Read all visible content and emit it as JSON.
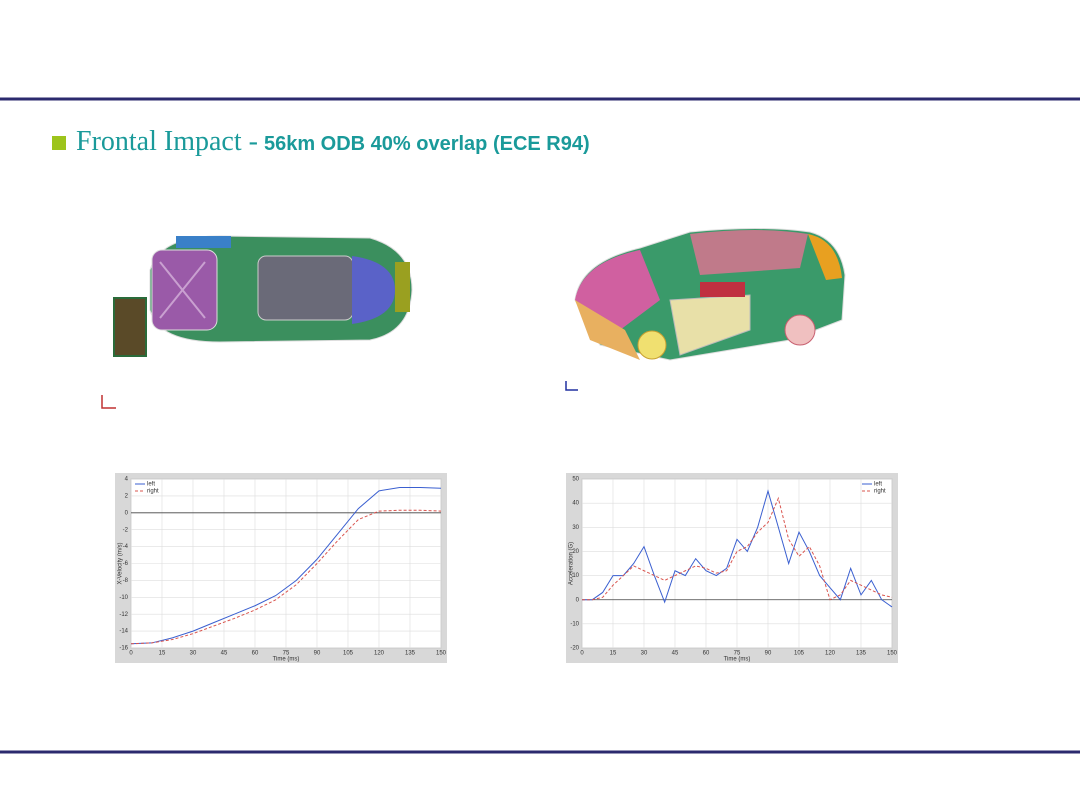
{
  "header": {
    "title_prefix": "Frontal Impact -",
    "title_detail": "56km ODB 40% overlap  (ECE R94)"
  },
  "chart_data": [
    {
      "type": "line",
      "xlabel": "Time (ms)",
      "ylabel": "X-Velocity (m/s)",
      "xlim": [
        0,
        150
      ],
      "xticks": [
        0,
        15,
        30,
        45,
        60,
        75,
        90,
        105,
        120,
        135,
        150
      ],
      "ylim": [
        -16,
        4
      ],
      "yticks": [
        -16,
        -14,
        -12,
        -10,
        -8,
        -6,
        -4,
        -2,
        0,
        2,
        4
      ],
      "grid": true,
      "x": [
        0,
        10,
        20,
        30,
        40,
        50,
        60,
        70,
        80,
        90,
        100,
        110,
        120,
        130,
        140,
        150
      ],
      "series": [
        {
          "name": "left",
          "color": "#3a5fd0",
          "line_style": "solid",
          "values": [
            -15.5,
            -15.4,
            -14.8,
            -14,
            -13,
            -12,
            -11,
            -9.8,
            -8,
            -5.5,
            -2.5,
            0.5,
            2.6,
            3,
            3,
            2.9
          ]
        },
        {
          "name": "right",
          "color": "#d9544e",
          "line_style": "dashed",
          "values": [
            -15.5,
            -15.4,
            -15,
            -14.3,
            -13.4,
            -12.5,
            -11.5,
            -10.3,
            -8.5,
            -6,
            -3.3,
            -0.8,
            0.2,
            0.3,
            0.3,
            0.2
          ]
        }
      ]
    },
    {
      "type": "line",
      "xlabel": "Time (ms)",
      "ylabel": "Acceleration (G)",
      "xlim": [
        0,
        150
      ],
      "xticks": [
        0,
        15,
        30,
        45,
        60,
        75,
        90,
        105,
        120,
        135,
        150
      ],
      "ylim": [
        -20,
        50
      ],
      "yticks": [
        -20,
        -10,
        0,
        10,
        20,
        30,
        40,
        50
      ],
      "grid": true,
      "x": [
        0,
        5,
        10,
        15,
        20,
        25,
        30,
        35,
        40,
        45,
        50,
        55,
        60,
        65,
        70,
        75,
        80,
        85,
        90,
        95,
        100,
        105,
        110,
        115,
        120,
        125,
        130,
        135,
        140,
        145,
        150
      ],
      "series": [
        {
          "name": "left",
          "color": "#3a5fd0",
          "line_style": "solid",
          "values": [
            0,
            0,
            3,
            10,
            10,
            15,
            22,
            10,
            -1,
            12,
            10,
            17,
            12,
            10,
            13,
            25,
            20,
            30,
            45,
            30,
            15,
            28,
            20,
            10,
            5,
            0,
            13,
            2,
            8,
            0,
            -3
          ]
        },
        {
          "name": "right",
          "color": "#d9544e",
          "line_style": "dashed",
          "values": [
            0,
            0,
            1,
            6,
            10,
            14,
            12,
            10,
            8,
            10,
            12,
            14,
            13,
            11,
            12,
            20,
            22,
            28,
            32,
            42,
            25,
            18,
            22,
            14,
            0,
            2,
            8,
            6,
            4,
            2,
            1
          ]
        }
      ]
    }
  ]
}
